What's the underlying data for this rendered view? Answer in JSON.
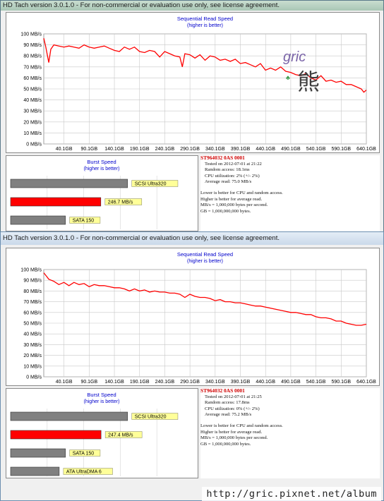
{
  "watermark": "http://gric.pixnet.net/album",
  "logo_text": "gric 熊",
  "windows": [
    {
      "title": "HD Tach version 3.0.1.0  - For non-commercial or evaluation use only, see license agreement.",
      "info": {
        "model": "ST964032 0AS 0001",
        "tested_on": "Tested on 2012-07-01 at 21:22",
        "random_access": "Random access: 18.1ms",
        "cpu": "CPU utilization: 2% (+/- 2%)",
        "average_read": "Average read: 75.0 MB/s",
        "note1": "Lower is better for CPU and random access.",
        "note2": "Higher is better for average read.",
        "note3": "MB/s = 1,000,000 bytes per second.",
        "note4": "GB = 1,000,000,000 bytes."
      }
    },
    {
      "title": "HD Tach version 3.0.1.0  - For non-commercial or evaluation use only, see license agreement.",
      "info": {
        "model": "ST964032 0AS 0001",
        "tested_on": "Tested on 2012-07-01 at 21:25",
        "random_access": "Random access: 17.8ms",
        "cpu": "CPU utilization: 0% (+/- 2%)",
        "average_read": "Average read: 75.2 MB/s",
        "note1": "Lower is better for CPU and random access.",
        "note2": "Higher is better for average read.",
        "note3": "MB/s = 1,000,000 bytes per second.",
        "note4": "GB = 1,000,000,000 bytes."
      }
    }
  ],
  "chart_data": [
    {
      "type": "line",
      "title": "Sequential Read Speed",
      "subtitle": "(higher is better)",
      "y_ticks": [
        "0 MB/s",
        "10 MB/s",
        "20 MB/s",
        "30 MB/s",
        "40 MB/s",
        "50 MB/s",
        "60 MB/s",
        "70 MB/s",
        "80 MB/s",
        "90 MB/s",
        "100 MB/s"
      ],
      "x_ticks": [
        "40.1GB",
        "90.1GB",
        "140.1GB",
        "190.1GB",
        "240.1GB",
        "290.1GB",
        "340.1GB",
        "390.1GB",
        "440.1GB",
        "490.1GB",
        "540.1GB",
        "590.1GB",
        "640.1GB"
      ],
      "xlim": [
        0,
        640.1
      ],
      "ylim": [
        0,
        100
      ],
      "line_color": "#ff0000",
      "x": [
        0,
        4,
        10,
        14,
        20,
        30,
        40,
        50,
        60,
        70,
        80,
        90,
        100,
        110,
        120,
        130,
        140,
        150,
        160,
        170,
        180,
        190,
        200,
        210,
        220,
        230,
        240,
        250,
        260,
        270,
        275,
        280,
        290,
        300,
        310,
        320,
        330,
        340,
        350,
        360,
        370,
        380,
        390,
        400,
        410,
        420,
        430,
        440,
        450,
        460,
        470,
        480,
        490,
        500,
        510,
        520,
        530,
        540,
        550,
        560,
        570,
        580,
        590,
        600,
        610,
        620,
        630,
        635,
        640
      ],
      "y": [
        96,
        88,
        74,
        86,
        90,
        89,
        88,
        89,
        88,
        87,
        90,
        88,
        87,
        88,
        89,
        87,
        85,
        84,
        88,
        86,
        88,
        84,
        83,
        85,
        84,
        79,
        84,
        82,
        80,
        79,
        70,
        82,
        81,
        78,
        81,
        76,
        80,
        79,
        76,
        77,
        75,
        77,
        73,
        74,
        72,
        70,
        73,
        67,
        69,
        67,
        70,
        66,
        65,
        63,
        62,
        64,
        60,
        58,
        62,
        57,
        58,
        56,
        57,
        54,
        54,
        52,
        50,
        47,
        49
      ]
    },
    {
      "type": "bar",
      "title": "Burst Speed",
      "subtitle": "(higher is better)",
      "categories": [
        "SCSI Ultra320",
        "246.7 MB/s",
        "SATA 150"
      ],
      "values": [
        320,
        246.7,
        150
      ],
      "colors": [
        "#808080",
        "#ff0000",
        "#808080"
      ],
      "xlim": [
        0,
        500
      ]
    },
    {
      "type": "line",
      "title": "Sequential Read Speed",
      "subtitle": "(higher is better)",
      "y_ticks": [
        "0 MB/s",
        "10 MB/s",
        "20 MB/s",
        "30 MB/s",
        "40 MB/s",
        "50 MB/s",
        "60 MB/s",
        "70 MB/s",
        "80 MB/s",
        "90 MB/s",
        "100 MB/s"
      ],
      "x_ticks": [
        "40.1GB",
        "90.1GB",
        "140.1GB",
        "190.1GB",
        "240.1GB",
        "290.1GB",
        "340.1GB",
        "390.1GB",
        "440.1GB",
        "490.1GB",
        "540.1GB",
        "590.1GB",
        "640.1GB"
      ],
      "xlim": [
        0,
        640.1
      ],
      "ylim": [
        0,
        100
      ],
      "line_color": "#ff0000",
      "x": [
        0,
        5,
        10,
        20,
        30,
        40,
        50,
        60,
        70,
        80,
        90,
        100,
        110,
        120,
        130,
        140,
        150,
        160,
        170,
        180,
        190,
        200,
        210,
        220,
        230,
        240,
        250,
        260,
        270,
        280,
        290,
        300,
        310,
        320,
        330,
        340,
        350,
        360,
        370,
        380,
        390,
        400,
        410,
        420,
        430,
        440,
        450,
        460,
        470,
        480,
        490,
        500,
        510,
        520,
        530,
        540,
        550,
        560,
        570,
        580,
        590,
        600,
        610,
        620,
        630,
        640
      ],
      "y": [
        97,
        94,
        91,
        89,
        86,
        88,
        85,
        88,
        86,
        87,
        84,
        86,
        85,
        85,
        84,
        83,
        83,
        82,
        80,
        82,
        80,
        81,
        79,
        80,
        79,
        79,
        78,
        78,
        77,
        74,
        77,
        75,
        74,
        74,
        73,
        71,
        72,
        70,
        70,
        69,
        69,
        68,
        67,
        66,
        66,
        65,
        64,
        63,
        62,
        61,
        60,
        60,
        59,
        58,
        58,
        56,
        55,
        55,
        54,
        52,
        52,
        50,
        49,
        48,
        48,
        49
      ]
    },
    {
      "type": "bar",
      "title": "Burst Speed",
      "subtitle": "(higher is better)",
      "categories": [
        "SCSI Ultra320",
        "247.4 MB/s",
        "SATA 150",
        "ATA UltraDMA 6"
      ],
      "values": [
        320,
        247.4,
        150,
        133
      ],
      "colors": [
        "#808080",
        "#ff0000",
        "#808080",
        "#808080"
      ],
      "xlim": [
        0,
        500
      ]
    }
  ]
}
